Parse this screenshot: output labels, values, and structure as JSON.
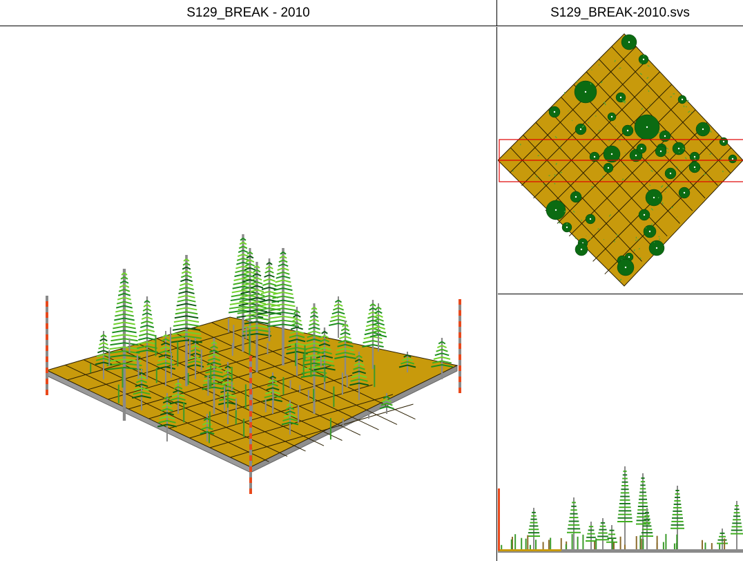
{
  "window": {
    "left_title": "S129_BREAK - 2010",
    "right_title": "S129_BREAK-2010.svs"
  },
  "views": {
    "perspective": "perspective-3d-view",
    "overhead": "overhead-plan-view",
    "profile": "side-profile-view"
  },
  "colors": {
    "ground": "#C89A0C",
    "grid": "#2A1E00",
    "pole_red": "#E8491C",
    "pole_gray": "#8A8A8A",
    "crown_dark": "#0B6B12",
    "crown_light": "#6FD22A",
    "selection": "#E00000"
  }
}
